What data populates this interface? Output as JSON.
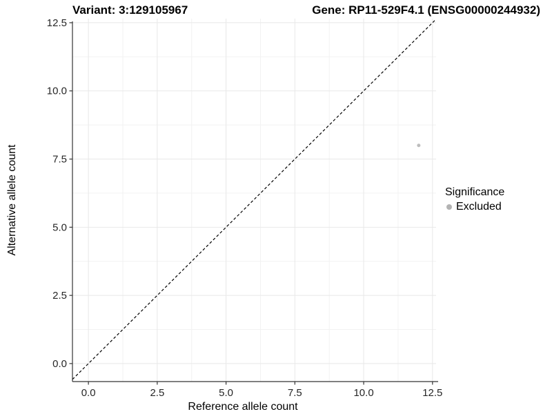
{
  "titles": {
    "left": "Variant: 3:129105967",
    "right": "Gene: RP11-529F4.1 (ENSG00000244932)"
  },
  "chart_data": {
    "type": "scatter",
    "xlabel": "Reference allele count",
    "ylabel": "Alternative allele count",
    "xticks": [
      0.0,
      2.5,
      5.0,
      7.5,
      10.0,
      12.5
    ],
    "yticks": [
      0.0,
      2.5,
      5.0,
      7.5,
      10.0,
      12.5
    ],
    "xtick_labels": [
      "0.0",
      "2.5",
      "5.0",
      "7.5",
      "10.0",
      "12.5"
    ],
    "ytick_labels": [
      "0.0",
      "2.5",
      "5.0",
      "7.5",
      "10.0",
      "12.5"
    ],
    "xlim": [
      -0.58,
      12.63
    ],
    "ylim": [
      -0.66,
      12.65
    ],
    "grid": true,
    "minor_grid": true,
    "points": [
      {
        "x": 12,
        "y": 8,
        "series": "Excluded"
      }
    ],
    "identity_line": {
      "slope": 1,
      "intercept": 0,
      "style": "dashed"
    },
    "legend": {
      "title": "Significance",
      "position": "right",
      "entries": [
        {
          "label": "Excluded",
          "color": "#b3b3b3"
        }
      ]
    },
    "colors": {
      "point": "#bdbdbd",
      "grid_major": "#e8e8e8",
      "grid_minor": "#f2f2f2",
      "axis": "#333333",
      "dashed_line": "#000000"
    }
  }
}
